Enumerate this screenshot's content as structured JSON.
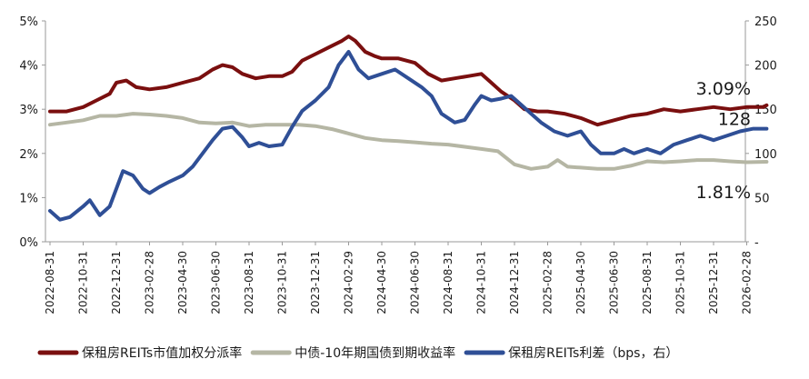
{
  "chart_data": {
    "type": "line",
    "title": "",
    "xlabel": "",
    "ylabel": "",
    "y_left": {
      "ylim": [
        0,
        5
      ],
      "tick_labels": [
        "0%",
        "1%",
        "2%",
        "3%",
        "4%",
        "5%"
      ]
    },
    "y_right": {
      "ylim": [
        0,
        250
      ],
      "tick_labels": [
        "-",
        "50",
        "100",
        "150",
        "200",
        "250"
      ]
    },
    "x_tick_labels": [
      "2022-08-31",
      "2022-10-31",
      "2022-12-31",
      "2023-02-28",
      "2023-04-30",
      "2023-06-30",
      "2023-08-31",
      "2023-10-31",
      "2023-12-31",
      "2024-02-29",
      "2024-04-30",
      "2024-06-30",
      "2024-08-31",
      "2024-10-31",
      "2024-12-31",
      "2025-02-28",
      "2025-04-30",
      "2025-06-30",
      "2025-08-31",
      "2025-10-31",
      "2025-12-31",
      "2026-02-28"
    ],
    "grid": false,
    "legend_position": "bottom",
    "series": [
      {
        "name": "保租房REITs市值加权分派率",
        "axis": "left",
        "color": "#7a0f0f",
        "points": [
          [
            0.0,
            2.95
          ],
          [
            0.5,
            2.95
          ],
          [
            1.0,
            3.05
          ],
          [
            1.4,
            3.2
          ],
          [
            1.8,
            3.35
          ],
          [
            2.0,
            3.6
          ],
          [
            2.3,
            3.65
          ],
          [
            2.6,
            3.5
          ],
          [
            3.0,
            3.45
          ],
          [
            3.5,
            3.5
          ],
          [
            4.0,
            3.6
          ],
          [
            4.5,
            3.7
          ],
          [
            4.9,
            3.9
          ],
          [
            5.2,
            4.0
          ],
          [
            5.5,
            3.95
          ],
          [
            5.8,
            3.8
          ],
          [
            6.2,
            3.7
          ],
          [
            6.6,
            3.75
          ],
          [
            7.0,
            3.75
          ],
          [
            7.3,
            3.85
          ],
          [
            7.6,
            4.1
          ],
          [
            8.0,
            4.25
          ],
          [
            8.4,
            4.4
          ],
          [
            8.8,
            4.55
          ],
          [
            9.0,
            4.65
          ],
          [
            9.2,
            4.55
          ],
          [
            9.5,
            4.3
          ],
          [
            9.8,
            4.2
          ],
          [
            10.0,
            4.15
          ],
          [
            10.5,
            4.15
          ],
          [
            11.0,
            4.05
          ],
          [
            11.4,
            3.8
          ],
          [
            11.8,
            3.65
          ],
          [
            12.2,
            3.7
          ],
          [
            12.6,
            3.75
          ],
          [
            13.0,
            3.8
          ],
          [
            13.3,
            3.6
          ],
          [
            13.6,
            3.4
          ],
          [
            14.0,
            3.2
          ],
          [
            14.3,
            3.0
          ],
          [
            14.7,
            2.95
          ],
          [
            15.0,
            2.95
          ],
          [
            15.5,
            2.9
          ],
          [
            16.0,
            2.8
          ],
          [
            16.5,
            2.65
          ],
          [
            17.0,
            2.75
          ],
          [
            17.5,
            2.85
          ],
          [
            18.0,
            2.9
          ],
          [
            18.5,
            3.0
          ],
          [
            19.0,
            2.95
          ],
          [
            19.5,
            3.0
          ],
          [
            20.0,
            3.05
          ],
          [
            20.5,
            3.0
          ],
          [
            21.0,
            3.05
          ],
          [
            21.5,
            3.05
          ],
          [
            21.6,
            3.09
          ]
        ]
      },
      {
        "name": "中债-10年期国债到期收益率",
        "axis": "left",
        "color": "#b5b6a4",
        "points": [
          [
            0.0,
            2.65
          ],
          [
            0.5,
            2.7
          ],
          [
            1.0,
            2.75
          ],
          [
            1.5,
            2.85
          ],
          [
            2.0,
            2.85
          ],
          [
            2.5,
            2.9
          ],
          [
            3.0,
            2.88
          ],
          [
            3.5,
            2.85
          ],
          [
            4.0,
            2.8
          ],
          [
            4.5,
            2.7
          ],
          [
            5.0,
            2.68
          ],
          [
            5.5,
            2.7
          ],
          [
            6.0,
            2.62
          ],
          [
            6.5,
            2.65
          ],
          [
            7.0,
            2.65
          ],
          [
            7.5,
            2.65
          ],
          [
            8.0,
            2.62
          ],
          [
            8.5,
            2.55
          ],
          [
            9.0,
            2.45
          ],
          [
            9.5,
            2.35
          ],
          [
            10.0,
            2.3
          ],
          [
            10.5,
            2.28
          ],
          [
            11.0,
            2.25
          ],
          [
            11.5,
            2.22
          ],
          [
            12.0,
            2.2
          ],
          [
            12.5,
            2.15
          ],
          [
            13.0,
            2.1
          ],
          [
            13.5,
            2.05
          ],
          [
            14.0,
            1.75
          ],
          [
            14.5,
            1.65
          ],
          [
            15.0,
            1.7
          ],
          [
            15.3,
            1.85
          ],
          [
            15.6,
            1.7
          ],
          [
            16.0,
            1.68
          ],
          [
            16.5,
            1.65
          ],
          [
            17.0,
            1.65
          ],
          [
            17.5,
            1.72
          ],
          [
            18.0,
            1.82
          ],
          [
            18.5,
            1.8
          ],
          [
            19.0,
            1.82
          ],
          [
            19.5,
            1.85
          ],
          [
            20.0,
            1.85
          ],
          [
            20.5,
            1.82
          ],
          [
            21.0,
            1.8
          ],
          [
            21.6,
            1.81
          ]
        ]
      },
      {
        "name": "保租房REITs利差（bps，右）",
        "axis": "right",
        "color": "#2f4f96",
        "points": [
          [
            0.0,
            35
          ],
          [
            0.3,
            25
          ],
          [
            0.6,
            28
          ],
          [
            1.0,
            40
          ],
          [
            1.2,
            47
          ],
          [
            1.5,
            30
          ],
          [
            1.8,
            40
          ],
          [
            2.0,
            60
          ],
          [
            2.2,
            80
          ],
          [
            2.5,
            75
          ],
          [
            2.8,
            60
          ],
          [
            3.0,
            55
          ],
          [
            3.3,
            62
          ],
          [
            3.6,
            68
          ],
          [
            4.0,
            75
          ],
          [
            4.3,
            85
          ],
          [
            4.6,
            100
          ],
          [
            4.9,
            115
          ],
          [
            5.2,
            128
          ],
          [
            5.5,
            130
          ],
          [
            5.8,
            118
          ],
          [
            6.0,
            108
          ],
          [
            6.3,
            112
          ],
          [
            6.6,
            108
          ],
          [
            7.0,
            110
          ],
          [
            7.3,
            130
          ],
          [
            7.6,
            148
          ],
          [
            8.0,
            160
          ],
          [
            8.4,
            175
          ],
          [
            8.7,
            200
          ],
          [
            9.0,
            215
          ],
          [
            9.3,
            195
          ],
          [
            9.6,
            185
          ],
          [
            10.0,
            190
          ],
          [
            10.4,
            195
          ],
          [
            10.8,
            185
          ],
          [
            11.2,
            175
          ],
          [
            11.5,
            165
          ],
          [
            11.8,
            145
          ],
          [
            12.2,
            135
          ],
          [
            12.5,
            138
          ],
          [
            12.8,
            155
          ],
          [
            13.0,
            165
          ],
          [
            13.3,
            160
          ],
          [
            13.6,
            162
          ],
          [
            13.9,
            165
          ],
          [
            14.2,
            155
          ],
          [
            14.5,
            145
          ],
          [
            14.8,
            135
          ],
          [
            15.2,
            125
          ],
          [
            15.6,
            120
          ],
          [
            16.0,
            125
          ],
          [
            16.3,
            110
          ],
          [
            16.6,
            100
          ],
          [
            17.0,
            100
          ],
          [
            17.3,
            105
          ],
          [
            17.6,
            100
          ],
          [
            18.0,
            105
          ],
          [
            18.4,
            100
          ],
          [
            18.8,
            110
          ],
          [
            19.2,
            115
          ],
          [
            19.6,
            120
          ],
          [
            20.0,
            115
          ],
          [
            20.4,
            120
          ],
          [
            20.8,
            125
          ],
          [
            21.2,
            128
          ],
          [
            21.6,
            128
          ]
        ]
      }
    ],
    "annotations": [
      {
        "text": "3.09%",
        "series": 0
      },
      {
        "text": "128",
        "series": 2
      },
      {
        "text": "1.81%",
        "series": 1
      }
    ]
  }
}
